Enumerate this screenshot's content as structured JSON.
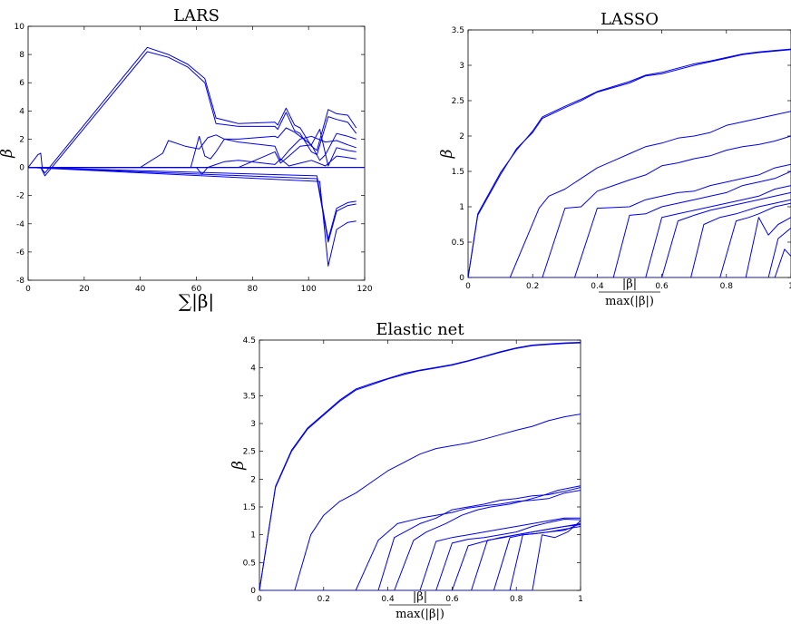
{
  "chart_data": [
    {
      "type": "line",
      "title": "LARS",
      "xlabel": "∑|β|",
      "ylabel": "β",
      "xlim": [
        0,
        120
      ],
      "ylim": [
        -8,
        10
      ],
      "xticks": [
        0,
        20,
        40,
        60,
        80,
        100,
        120
      ],
      "yticks": [
        -8,
        -6,
        -4,
        -2,
        0,
        2,
        4,
        6,
        8,
        10
      ],
      "color": "#0000ee",
      "series": [
        {
          "x": [
            0,
            120
          ],
          "y": [
            0,
            0
          ]
        },
        {
          "x": [
            0,
            4.5,
            6,
            42.5,
            50,
            57,
            63,
            67,
            75,
            88,
            89,
            92,
            95,
            97,
            101,
            103,
            107,
            110,
            114,
            117
          ],
          "y": [
            0,
            0,
            -0.4,
            8.5,
            8.0,
            7.3,
            6.3,
            3.5,
            3.1,
            3.2,
            3.0,
            4.2,
            3.0,
            2.8,
            1.5,
            1.2,
            4.1,
            3.8,
            3.7,
            2.8
          ]
        },
        {
          "x": [
            0,
            4.5,
            6,
            42.5,
            50,
            57,
            63,
            67,
            75,
            88,
            89,
            92,
            95,
            97,
            101,
            103,
            107,
            110,
            114,
            117
          ],
          "y": [
            0,
            0,
            -0.6,
            8.2,
            7.8,
            7.1,
            6.0,
            3.1,
            2.9,
            2.9,
            2.7,
            3.9,
            2.6,
            2.4,
            1.1,
            0.9,
            3.6,
            3.4,
            3.2,
            2.4
          ]
        },
        {
          "x": [
            0,
            40,
            48,
            50,
            56,
            61,
            64,
            67,
            70,
            75,
            88,
            89,
            92,
            95,
            101,
            104,
            106,
            110,
            114,
            117
          ],
          "y": [
            0,
            0,
            1.0,
            1.9,
            1.5,
            1.3,
            2.1,
            2.3,
            2.0,
            2.0,
            2.2,
            2.1,
            2.8,
            2.5,
            1.6,
            0.5,
            0.9,
            2.4,
            2.2,
            2.0
          ]
        },
        {
          "x": [
            0,
            58,
            61,
            63,
            65,
            67,
            70,
            75,
            88,
            90,
            93,
            97,
            101,
            106,
            110,
            114,
            117
          ],
          "y": [
            0,
            0,
            2.2,
            0.8,
            0.6,
            1.1,
            2.0,
            1.8,
            1.5,
            0.5,
            1.2,
            2.0,
            2.2,
            1.8,
            1.9,
            1.6,
            1.4
          ]
        },
        {
          "x": [
            0,
            75,
            88,
            90,
            93,
            97,
            101,
            104,
            107,
            110,
            114,
            117
          ],
          "y": [
            0,
            0,
            1.1,
            0.3,
            0.8,
            1.5,
            1.6,
            2.7,
            0.1,
            1.4,
            1.2,
            1.1
          ]
        },
        {
          "x": [
            0,
            103,
            107,
            110,
            114,
            117
          ],
          "y": [
            0,
            -0.6,
            -5.1,
            -2.9,
            -2.5,
            -2.4
          ]
        },
        {
          "x": [
            0,
            103,
            107,
            110,
            114,
            117
          ],
          "y": [
            0,
            -0.8,
            -5.3,
            -3.1,
            -2.7,
            -2.6
          ]
        },
        {
          "x": [
            0,
            104,
            107,
            110,
            114,
            117
          ],
          "y": [
            0,
            -1.0,
            -7.0,
            -4.4,
            -3.9,
            -3.8
          ]
        },
        {
          "x": [
            0,
            3.5,
            4.5,
            5,
            120
          ],
          "y": [
            0,
            0.9,
            1.0,
            0,
            0
          ]
        },
        {
          "x": [
            0,
            60,
            62,
            64,
            67,
            70,
            75,
            88,
            90,
            93,
            97,
            101,
            106,
            110,
            114,
            117
          ],
          "y": [
            0,
            0,
            -0.5,
            0,
            0.2,
            0.4,
            0.5,
            0.2,
            0.6,
            0.1,
            0.3,
            0.5,
            0.1,
            0.8,
            0.7,
            0.6
          ]
        }
      ]
    },
    {
      "type": "line",
      "title": "LASSO",
      "xlabel_num": "|β|",
      "xlabel_den": "max(|β|)",
      "ylabel": "β",
      "xlim": [
        0,
        1
      ],
      "ylim": [
        0,
        3.5
      ],
      "xticks": [
        0,
        0.2,
        0.4,
        0.6,
        0.8,
        1
      ],
      "xtick_labels": [
        "0",
        "0.2",
        "0.4",
        "0.6",
        "0.8",
        "1"
      ],
      "yticks": [
        0,
        0.5,
        1,
        1.5,
        2,
        2.5,
        3,
        3.5
      ],
      "color": "#0000ee",
      "series": [
        {
          "x": [
            0,
            0.03,
            0.1,
            0.15,
            0.2,
            0.23,
            0.3,
            0.35,
            0.4,
            0.5,
            0.55,
            0.6,
            0.7,
            0.75,
            0.8,
            0.85,
            0.9,
            0.95,
            1.0
          ],
          "y": [
            0,
            0.88,
            1.45,
            1.82,
            2.05,
            2.25,
            2.4,
            2.5,
            2.62,
            2.75,
            2.85,
            2.88,
            3.0,
            3.05,
            3.1,
            3.15,
            3.18,
            3.2,
            3.22
          ]
        },
        {
          "x": [
            0,
            0.03,
            0.1,
            0.15,
            0.2,
            0.23,
            0.3,
            0.35,
            0.4,
            0.5,
            0.55,
            0.6,
            0.7,
            0.75,
            0.8,
            0.85,
            0.9,
            0.95,
            1.0
          ],
          "y": [
            0,
            0.9,
            1.48,
            1.8,
            2.07,
            2.27,
            2.42,
            2.52,
            2.63,
            2.77,
            2.86,
            2.9,
            3.02,
            3.06,
            3.11,
            3.16,
            3.19,
            3.21,
            3.23
          ]
        },
        {
          "x": [
            0,
            0.13,
            0.22,
            0.25,
            0.3,
            0.4,
            0.45,
            0.5,
            0.55,
            0.6,
            0.65,
            0.7,
            0.75,
            0.8,
            0.85,
            0.9,
            0.95,
            1.0
          ],
          "y": [
            0,
            0,
            0.98,
            1.15,
            1.25,
            1.55,
            1.65,
            1.75,
            1.85,
            1.9,
            1.97,
            2.0,
            2.05,
            2.15,
            2.2,
            2.25,
            2.3,
            2.35
          ]
        },
        {
          "x": [
            0,
            0.23,
            0.3,
            0.35,
            0.4,
            0.45,
            0.5,
            0.55,
            0.6,
            0.65,
            0.7,
            0.75,
            0.8,
            0.85,
            0.9,
            0.95,
            1.0
          ],
          "y": [
            0,
            0,
            0.98,
            1.0,
            1.22,
            1.3,
            1.38,
            1.45,
            1.58,
            1.62,
            1.68,
            1.72,
            1.8,
            1.85,
            1.88,
            1.93,
            2.0
          ]
        },
        {
          "x": [
            0,
            0.33,
            0.4,
            0.5,
            0.55,
            0.6,
            0.65,
            0.7,
            0.75,
            0.8,
            0.85,
            0.9,
            0.95,
            1.0
          ],
          "y": [
            0,
            0,
            0.98,
            1.0,
            1.1,
            1.15,
            1.2,
            1.22,
            1.3,
            1.35,
            1.4,
            1.45,
            1.55,
            1.6
          ]
        },
        {
          "x": [
            0,
            0.45,
            0.5,
            0.55,
            0.6,
            0.65,
            0.7,
            0.75,
            0.8,
            0.85,
            0.9,
            0.95,
            1.0
          ],
          "y": [
            0,
            0,
            0.88,
            0.9,
            1.0,
            1.05,
            1.1,
            1.15,
            1.2,
            1.3,
            1.35,
            1.4,
            1.5
          ]
        },
        {
          "x": [
            0,
            0.55,
            0.6,
            0.65,
            0.7,
            0.75,
            0.8,
            0.85,
            0.9,
            0.95,
            1.0
          ],
          "y": [
            0,
            0,
            0.85,
            0.9,
            0.95,
            1.0,
            1.05,
            1.1,
            1.15,
            1.25,
            1.3
          ]
        },
        {
          "x": [
            0,
            0.6,
            0.65,
            0.7,
            0.75,
            0.8,
            0.85,
            0.9,
            0.95,
            1.0
          ],
          "y": [
            0,
            0,
            0.8,
            0.88,
            0.95,
            1.0,
            1.05,
            1.1,
            1.15,
            1.2
          ]
        },
        {
          "x": [
            0,
            0.69,
            0.73,
            0.78,
            0.83,
            0.9,
            0.95,
            1.0
          ],
          "y": [
            0,
            0,
            0.75,
            0.85,
            0.9,
            1.0,
            1.05,
            1.1
          ]
        },
        {
          "x": [
            0,
            0.78,
            0.83,
            0.87,
            0.9,
            0.95,
            1.0
          ],
          "y": [
            0,
            0,
            0.8,
            0.85,
            0.9,
            1.0,
            1.05
          ]
        },
        {
          "x": [
            0,
            0.86,
            0.9,
            0.93,
            0.96,
            1.0
          ],
          "y": [
            0,
            0,
            0.85,
            0.6,
            0.75,
            0.85
          ]
        },
        {
          "x": [
            0,
            0.93,
            0.96,
            1.0
          ],
          "y": [
            0,
            0,
            0.55,
            0.7
          ]
        },
        {
          "x": [
            0,
            0.95,
            0.98,
            1.0
          ],
          "y": [
            0,
            0,
            0.4,
            0.3
          ]
        }
      ]
    },
    {
      "type": "line",
      "title": "Elastic net",
      "xlabel_num": "|β|",
      "xlabel_den": "max(|β|)",
      "ylabel": "β",
      "xlim": [
        0,
        1
      ],
      "ylim": [
        0,
        4.5
      ],
      "xticks": [
        0,
        0.2,
        0.4,
        0.6,
        0.8,
        1
      ],
      "xtick_labels": [
        "0",
        "0.2",
        "0.4",
        "0.6",
        "0.8",
        "1"
      ],
      "yticks": [
        0,
        0.5,
        1,
        1.5,
        2,
        2.5,
        3,
        3.5,
        4,
        4.5
      ],
      "color": "#0000ee",
      "series": [
        {
          "x": [
            0,
            0.05,
            0.1,
            0.15,
            0.2,
            0.25,
            0.3,
            0.35,
            0.4,
            0.45,
            0.5,
            0.55,
            0.6,
            0.65,
            0.7,
            0.75,
            0.8,
            0.85,
            0.9,
            0.95,
            1.0
          ],
          "y": [
            0,
            1.85,
            2.5,
            2.9,
            3.15,
            3.4,
            3.6,
            3.7,
            3.8,
            3.88,
            3.95,
            4.0,
            4.05,
            4.12,
            4.2,
            4.28,
            4.35,
            4.4,
            4.42,
            4.44,
            4.45
          ]
        },
        {
          "x": [
            0,
            0.05,
            0.1,
            0.15,
            0.2,
            0.25,
            0.3,
            0.35,
            0.4,
            0.45,
            0.5,
            0.55,
            0.6,
            0.65,
            0.7,
            0.75,
            0.8,
            0.85,
            0.9,
            0.95,
            1.0
          ],
          "y": [
            0,
            1.87,
            2.52,
            2.92,
            3.17,
            3.42,
            3.62,
            3.72,
            3.81,
            3.9,
            3.96,
            4.01,
            4.06,
            4.13,
            4.21,
            4.29,
            4.36,
            4.41,
            4.43,
            4.45,
            4.46
          ]
        },
        {
          "x": [
            0,
            0.11,
            0.16,
            0.2,
            0.25,
            0.3,
            0.35,
            0.4,
            0.45,
            0.5,
            0.55,
            0.6,
            0.65,
            0.7,
            0.75,
            0.8,
            0.85,
            0.9,
            0.95,
            1.0
          ],
          "y": [
            0,
            0,
            1.0,
            1.35,
            1.6,
            1.75,
            1.95,
            2.15,
            2.3,
            2.45,
            2.55,
            2.6,
            2.65,
            2.72,
            2.8,
            2.88,
            2.95,
            3.05,
            3.12,
            3.17
          ]
        },
        {
          "x": [
            0,
            0.3,
            0.37,
            0.43,
            0.5,
            0.55,
            0.6,
            0.65,
            0.7,
            0.75,
            0.8,
            0.85,
            0.9,
            0.95,
            1.0
          ],
          "y": [
            0,
            0,
            0.9,
            1.2,
            1.3,
            1.35,
            1.4,
            1.48,
            1.52,
            1.55,
            1.6,
            1.62,
            1.65,
            1.75,
            1.8
          ]
        },
        {
          "x": [
            0,
            0.37,
            0.42,
            0.5,
            0.55,
            0.6,
            0.65,
            0.7,
            0.75,
            0.8,
            0.85,
            0.9,
            0.95,
            1.0
          ],
          "y": [
            0,
            0,
            0.95,
            1.2,
            1.3,
            1.45,
            1.5,
            1.55,
            1.62,
            1.65,
            1.7,
            1.72,
            1.78,
            1.85
          ]
        },
        {
          "x": [
            0,
            0.42,
            0.48,
            0.52,
            0.58,
            0.63,
            0.68,
            0.72,
            0.78,
            0.83,
            0.88,
            0.93,
            1.0
          ],
          "y": [
            0,
            0,
            0.9,
            1.05,
            1.2,
            1.35,
            1.45,
            1.5,
            1.55,
            1.62,
            1.7,
            1.8,
            1.88
          ]
        },
        {
          "x": [
            0,
            0.5,
            0.55,
            0.6,
            0.65,
            0.7,
            0.75,
            0.8,
            0.85,
            0.9,
            0.95,
            1.0
          ],
          "y": [
            0,
            0,
            0.88,
            0.95,
            1.0,
            1.05,
            1.1,
            1.15,
            1.2,
            1.25,
            1.3,
            1.3
          ]
        },
        {
          "x": [
            0,
            0.55,
            0.6,
            0.65,
            0.7,
            0.75,
            0.8,
            0.85,
            0.9,
            0.95,
            1.0
          ],
          "y": [
            0,
            0,
            0.85,
            0.92,
            0.95,
            1.0,
            1.05,
            1.15,
            1.22,
            1.28,
            1.27
          ]
        },
        {
          "x": [
            0,
            0.6,
            0.65,
            0.7,
            0.75,
            0.8,
            0.85,
            0.9,
            0.95,
            1.0
          ],
          "y": [
            0,
            0,
            0.8,
            0.88,
            0.95,
            1.0,
            1.05,
            1.1,
            1.15,
            1.2
          ]
        },
        {
          "x": [
            0,
            0.66,
            0.71,
            0.76,
            0.8,
            0.85,
            0.9,
            0.95,
            1.0
          ],
          "y": [
            0,
            0,
            0.9,
            0.95,
            1.0,
            1.05,
            1.1,
            1.15,
            1.18
          ]
        },
        {
          "x": [
            0,
            0.73,
            0.78,
            0.82,
            0.86,
            0.9,
            0.95,
            1.0
          ],
          "y": [
            0,
            0,
            0.95,
            1.0,
            1.02,
            1.05,
            1.1,
            1.15
          ]
        },
        {
          "x": [
            0,
            0.78,
            0.82,
            0.86,
            0.9,
            0.95,
            1.0
          ],
          "y": [
            0,
            0,
            1.0,
            1.02,
            1.05,
            1.08,
            1.2
          ]
        },
        {
          "x": [
            0,
            0.85,
            0.88,
            0.92,
            0.96,
            1.0
          ],
          "y": [
            0,
            0,
            1.0,
            0.95,
            1.05,
            1.25
          ]
        }
      ]
    }
  ]
}
